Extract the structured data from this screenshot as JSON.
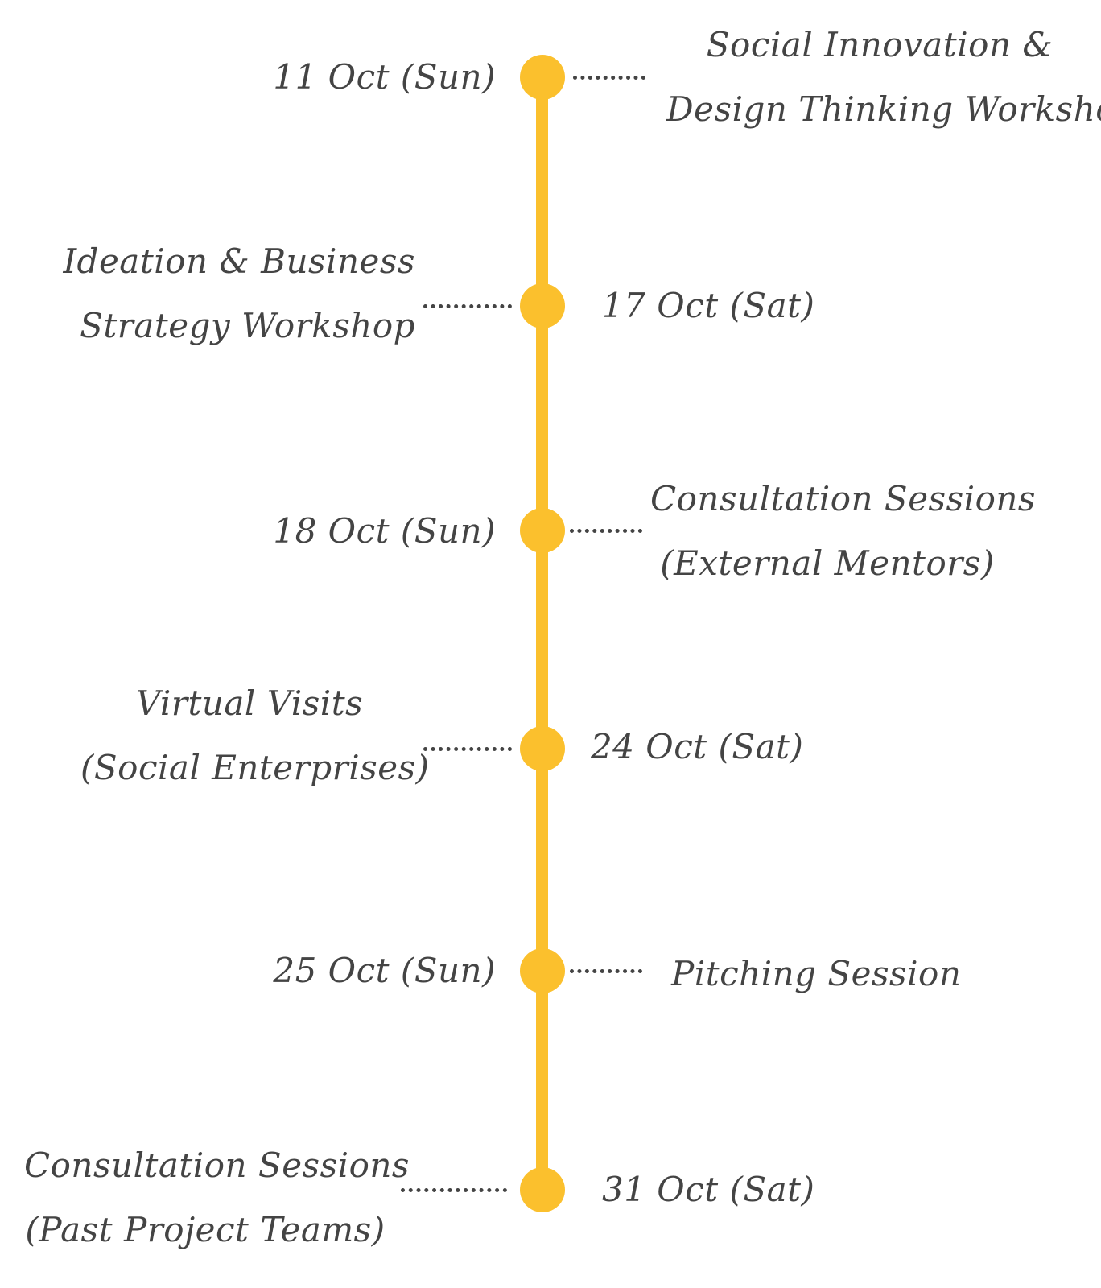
{
  "colors": {
    "line": "#FBC02D",
    "node": "#FBC02D",
    "text": "#444444"
  },
  "events": [
    {
      "date": "11 Oct (Sun)",
      "title_lines": [
        "Social Innovation &",
        "Design Thinking Workshop"
      ]
    },
    {
      "date": "17 Oct (Sat)",
      "title_lines": [
        "Ideation & Business",
        "Strategy Workshop"
      ]
    },
    {
      "date": "18 Oct (Sun)",
      "title_lines": [
        "Consultation Sessions",
        "(External Mentors)"
      ]
    },
    {
      "date": "24 Oct (Sat)",
      "title_lines": [
        "Virtual Visits",
        "(Social Enterprises)"
      ]
    },
    {
      "date": "25 Oct (Sun)",
      "title_lines": [
        "Pitching Session"
      ]
    },
    {
      "date": "31 Oct (Sat)",
      "title_lines": [
        "Consultation Sessions",
        "(Past Project Teams)"
      ]
    }
  ]
}
